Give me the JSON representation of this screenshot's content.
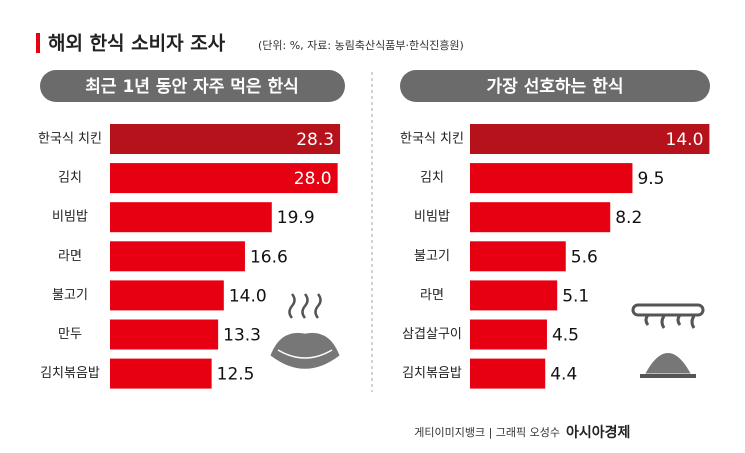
{
  "header": {
    "title": "해외 한식 소비자 조사",
    "subtitle": "(단위: %, 자료: 농림축산식품부·한식진흥원)"
  },
  "chart_data": [
    {
      "type": "bar",
      "title": "최근 1년 동안 자주 먹은 한식",
      "categories": [
        "한국식 치킨",
        "김치",
        "비빔밥",
        "라면",
        "불고기",
        "만두",
        "김치볶음밥"
      ],
      "values": [
        28.3,
        28.0,
        19.9,
        16.6,
        14.0,
        13.3,
        12.5
      ],
      "value_labels": [
        "28.3",
        "28.0",
        "19.9",
        "16.6",
        "14.0",
        "13.3",
        "12.5"
      ],
      "colors": [
        "#b5121b",
        "#e60012",
        "#e60012",
        "#e60012",
        "#e60012",
        "#e60012",
        "#e60012"
      ]
    },
    {
      "type": "bar",
      "title": "가장 선호하는 한식",
      "categories": [
        "한국식 치킨",
        "김치",
        "비빔밥",
        "불고기",
        "라면",
        "삼겹살구이",
        "김치볶음밥"
      ],
      "values": [
        14.0,
        9.5,
        8.2,
        5.6,
        5.1,
        4.5,
        4.4
      ],
      "value_labels": [
        "14.0",
        "9.5",
        "8.2",
        "5.6",
        "5.1",
        "4.5",
        "4.4"
      ],
      "colors": [
        "#b5121b",
        "#e60012",
        "#e60012",
        "#e60012",
        "#e60012",
        "#e60012",
        "#e60012"
      ]
    }
  ],
  "footer": {
    "credit": "게티이미지뱅크 | 그래픽 오성수",
    "brand": "아시아경제"
  }
}
